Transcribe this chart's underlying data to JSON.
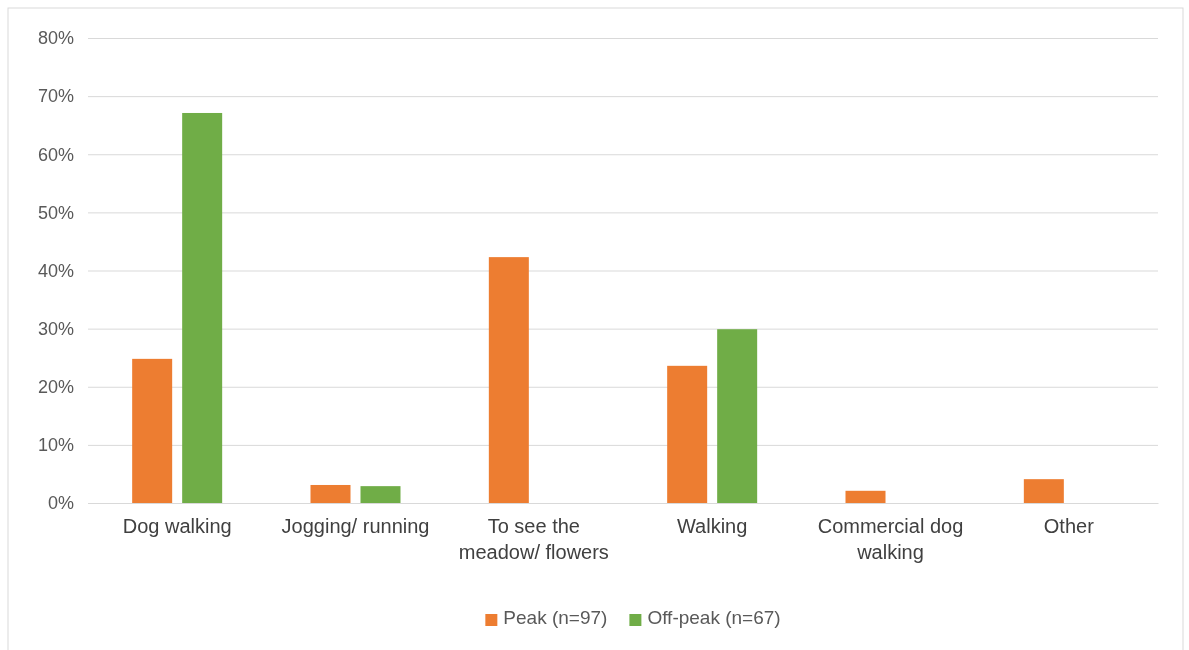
{
  "chart_data": {
    "type": "bar",
    "categories": [
      "Dog walking",
      "Jogging/ running",
      "To see the meadow/ flowers",
      "Walking",
      "Commercial dog walking",
      "Other"
    ],
    "series": [
      {
        "name": "Peak (n=97)",
        "color": "#ed7d31",
        "values": [
          24.8,
          3.1,
          42.3,
          23.6,
          2.1,
          4.1
        ]
      },
      {
        "name": "Off-peak (n=67)",
        "color": "#70ad47",
        "values": [
          67.1,
          2.9,
          0,
          29.9,
          0,
          0
        ]
      }
    ],
    "ylim": [
      0,
      80
    ],
    "yticks": [
      {
        "value": 0,
        "label": "0%"
      },
      {
        "value": 10,
        "label": "10%"
      },
      {
        "value": 20,
        "label": "20%"
      },
      {
        "value": 30,
        "label": "30%"
      },
      {
        "value": 40,
        "label": "40%"
      },
      {
        "value": 50,
        "label": "50%"
      },
      {
        "value": 60,
        "label": "60%"
      },
      {
        "value": 70,
        "label": "70%"
      },
      {
        "value": 80,
        "label": "80%"
      }
    ],
    "grid": "y",
    "legend": "bottom"
  }
}
